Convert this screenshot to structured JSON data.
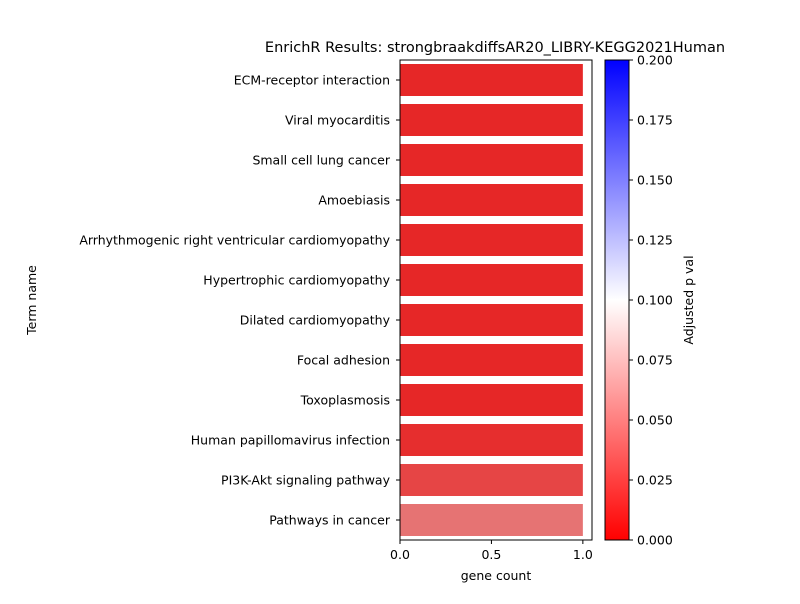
{
  "chart_data": {
    "type": "bar",
    "orientation": "horizontal",
    "title": "EnrichR Results: strongbraakdiffsAR20_LIBRY-KEGG2021Human",
    "xlabel": "gene count",
    "ylabel": "Term name",
    "xlim": [
      0,
      1.05
    ],
    "xticks": [
      {
        "value": 0.0,
        "label": "0.0"
      },
      {
        "value": 0.5,
        "label": "0.5"
      },
      {
        "value": 1.0,
        "label": "1.0"
      }
    ],
    "categories": [
      "ECM-receptor interaction",
      "Viral myocarditis",
      "Small cell lung cancer",
      "Amoebiasis",
      "Arrhythmogenic right ventricular cardiomyopathy",
      "Hypertrophic cardiomyopathy",
      "Dilated cardiomyopathy",
      "Focal adhesion",
      "Toxoplasmosis",
      "Human papillomavirus infection",
      "PI3K-Akt signaling pathway",
      "Pathways in cancer"
    ],
    "values": [
      1,
      1,
      1,
      1,
      1,
      1,
      1,
      1,
      1,
      1,
      1,
      1
    ],
    "adjusted_p_values": [
      0.017,
      0.017,
      0.017,
      0.017,
      0.017,
      0.017,
      0.017,
      0.017,
      0.017,
      0.02,
      0.03,
      0.05
    ],
    "colorbar": {
      "label": "Adjusted p val",
      "range": [
        0.0,
        0.2
      ],
      "colormap": [
        "#ff0000",
        "#ffffff",
        "#0000ff"
      ],
      "ticks": [
        {
          "value": 0.0,
          "label": "0.000"
        },
        {
          "value": 0.025,
          "label": "0.025"
        },
        {
          "value": 0.05,
          "label": "0.050"
        },
        {
          "value": 0.075,
          "label": "0.075"
        },
        {
          "value": 0.1,
          "label": "0.100"
        },
        {
          "value": 0.125,
          "label": "0.125"
        },
        {
          "value": 0.15,
          "label": "0.150"
        },
        {
          "value": 0.175,
          "label": "0.175"
        },
        {
          "value": 0.2,
          "label": "0.200"
        }
      ]
    },
    "grid": false,
    "legend": "none"
  }
}
